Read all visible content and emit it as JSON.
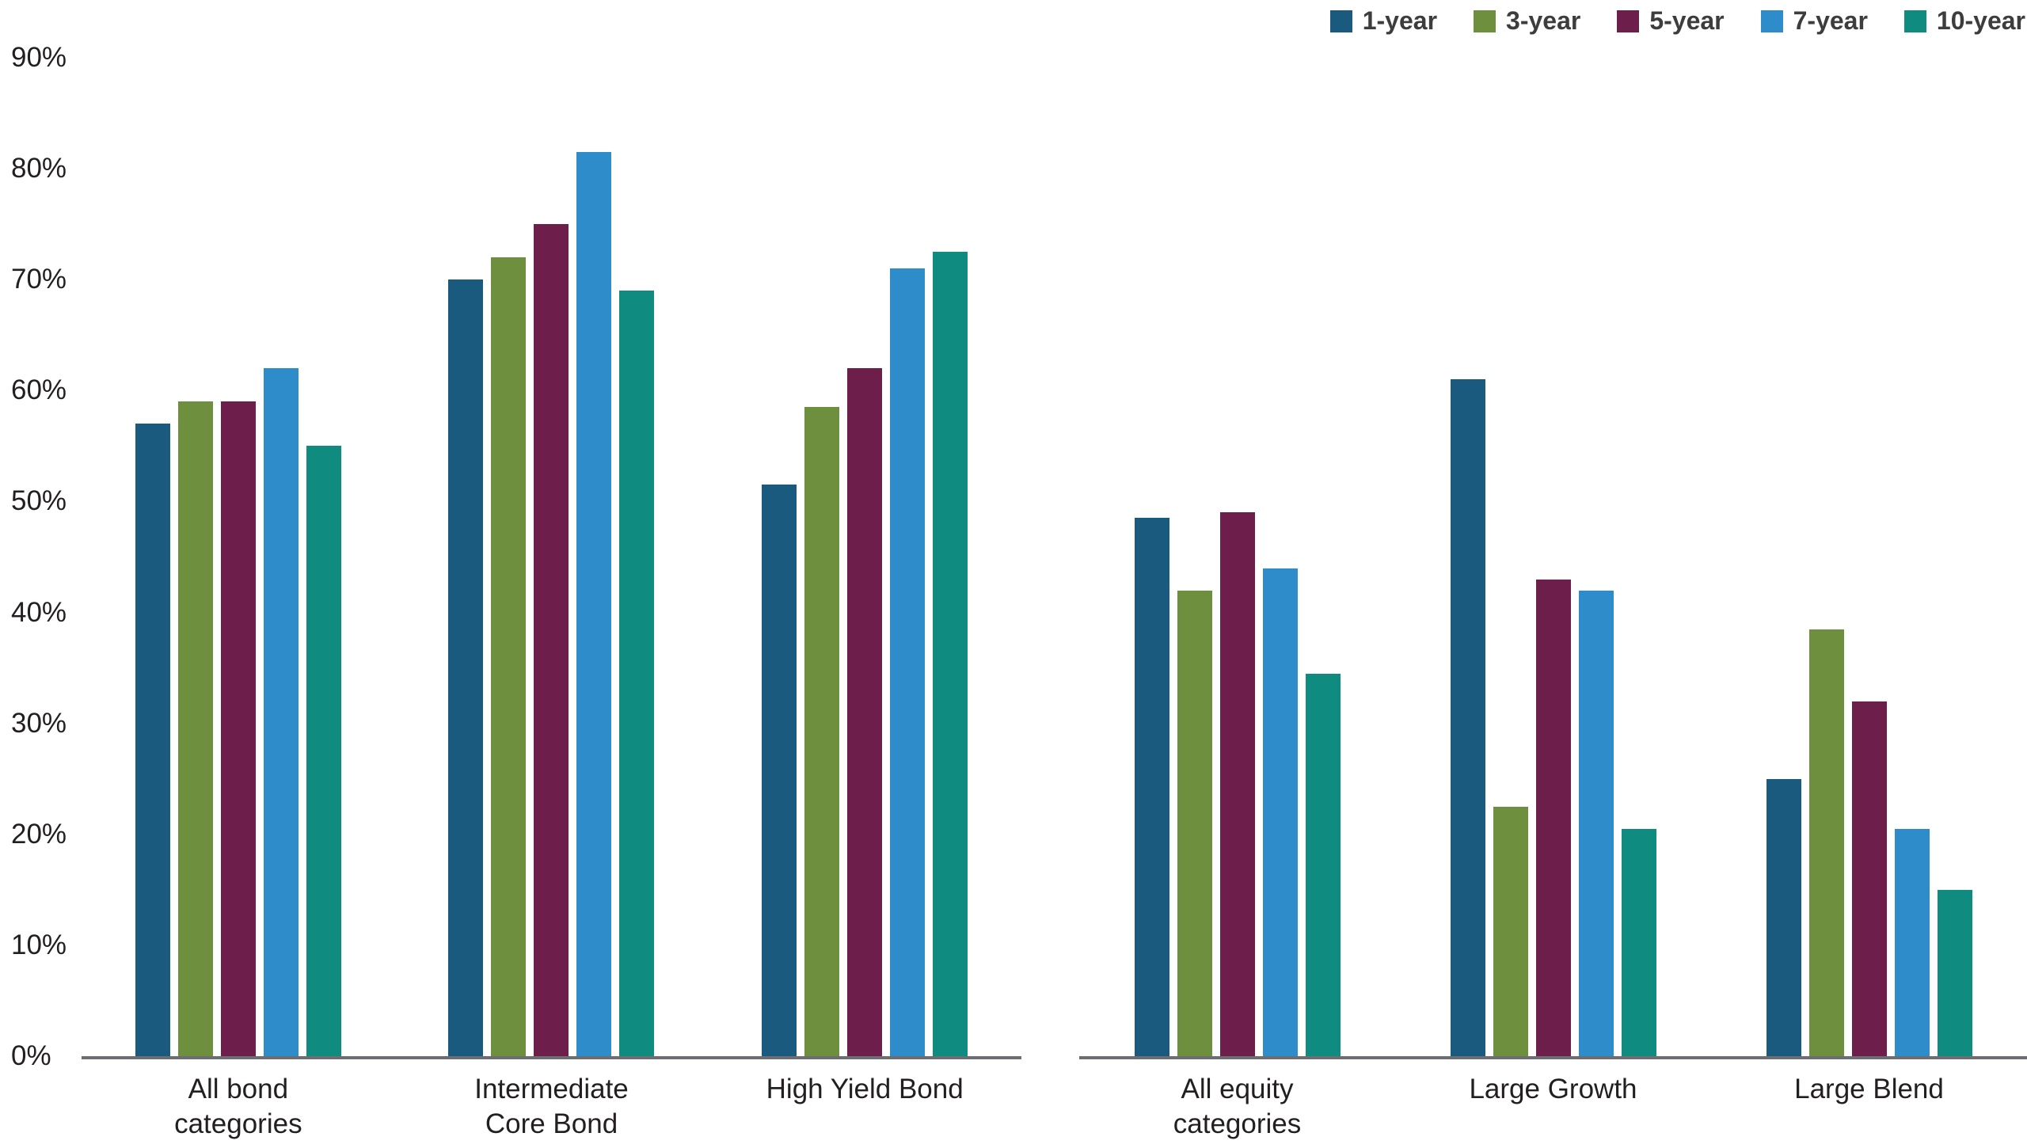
{
  "chart_data": {
    "type": "bar",
    "title": "",
    "xlabel": "",
    "ylabel": "",
    "ylim": [
      0,
      90
    ],
    "yticks": [
      0,
      10,
      20,
      30,
      40,
      50,
      60,
      70,
      80,
      90
    ],
    "ytick_format": "percent",
    "grid": false,
    "legend_position": "top-right",
    "axis_line_color": "#6d6e71",
    "series": [
      {
        "name": "1-year",
        "color": "#1a5a7e"
      },
      {
        "name": "3-year",
        "color": "#6e8f3d"
      },
      {
        "name": "5-year",
        "color": "#6e1e4a"
      },
      {
        "name": "7-year",
        "color": "#2e8cca"
      },
      {
        "name": "10-year",
        "color": "#0f8b7f"
      }
    ],
    "panels": [
      {
        "name": "bond-categories",
        "categories": [
          "All bond\ncategories",
          "Intermediate\nCore Bond",
          "High Yield Bond"
        ],
        "values": [
          [
            57,
            59,
            59,
            62,
            55
          ],
          [
            70,
            72,
            75,
            81.5,
            69
          ],
          [
            51.5,
            58.5,
            62,
            71,
            72.5
          ]
        ]
      },
      {
        "name": "equity-categories",
        "categories": [
          "All equity\ncategories",
          "Large Growth",
          "Large Blend"
        ],
        "values": [
          [
            48.5,
            42,
            49,
            44,
            34.5
          ],
          [
            61,
            22.5,
            43,
            42,
            20.5
          ],
          [
            25,
            38.5,
            32,
            20.5,
            15
          ]
        ]
      }
    ]
  }
}
